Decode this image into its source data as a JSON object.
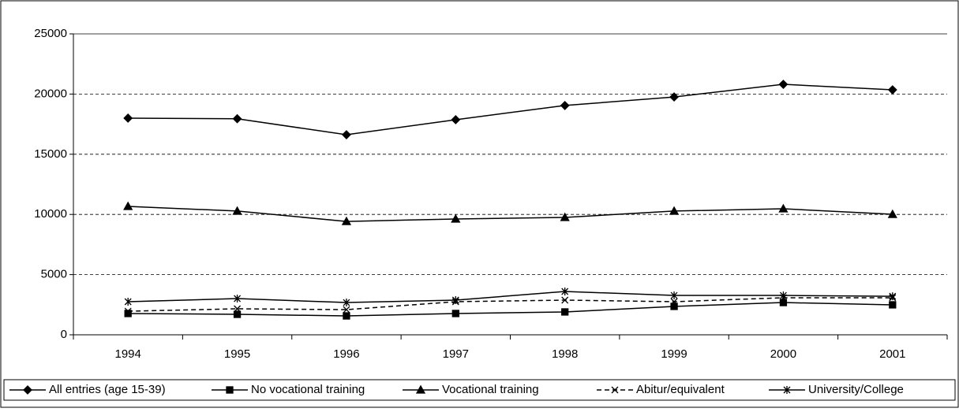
{
  "chart_data": {
    "type": "line",
    "categories": [
      "1994",
      "1995",
      "1996",
      "1997",
      "1998",
      "1999",
      "2000",
      "2001"
    ],
    "ylim": [
      0,
      25000
    ],
    "yticks": [
      0,
      5000,
      10000,
      15000,
      20000,
      25000
    ],
    "grid": true,
    "legend": "bottom",
    "series": [
      {
        "name": "All entries (age 15-39)",
        "color": "#000000",
        "marker": "diamond",
        "dash": false,
        "values": [
          18000,
          17950,
          16620,
          17870,
          19050,
          19760,
          20810,
          20350
        ]
      },
      {
        "name": "No vocational training",
        "color": "#000000",
        "marker": "square",
        "dash": false,
        "values": [
          1770,
          1700,
          1570,
          1770,
          1900,
          2360,
          2680,
          2490
        ]
      },
      {
        "name": "Vocational training",
        "color": "#000000",
        "marker": "triangle",
        "dash": false,
        "values": [
          10670,
          10280,
          9420,
          9620,
          9750,
          10280,
          10470,
          10010
        ]
      },
      {
        "name": "Abitur/equivalent",
        "color": "#000000",
        "marker": "x",
        "dash": true,
        "values": [
          1960,
          2160,
          2090,
          2750,
          2880,
          2750,
          3080,
          3080
        ]
      },
      {
        "name": "University/College",
        "color": "#000000",
        "marker": "asterisk",
        "dash": false,
        "values": [
          2750,
          3010,
          2680,
          2880,
          3600,
          3270,
          3270,
          3200
        ]
      }
    ]
  }
}
